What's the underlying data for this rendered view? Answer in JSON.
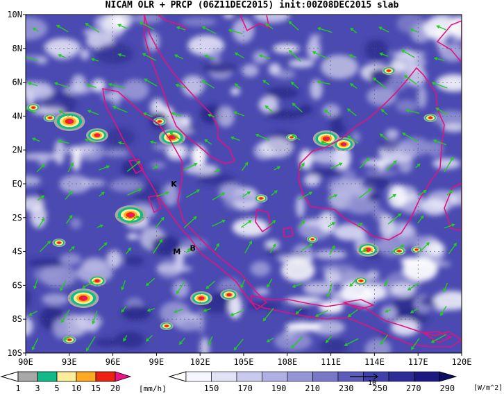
{
  "title": "NICAM OLR + PRCP (06Z11DEC2015) init:00Z08DEC2015 slab",
  "map": {
    "lat_labels": [
      "10N",
      "8N",
      "6N",
      "4N",
      "2N",
      "EQ",
      "2S",
      "4S",
      "6S",
      "8S",
      "10S"
    ],
    "lon_labels": [
      "90E",
      "93E",
      "96E",
      "99E",
      "102E",
      "105E",
      "108E",
      "111E",
      "114E",
      "117E",
      "120E"
    ],
    "place_markers": [
      {
        "label": "K",
        "lon": 100.2,
        "lat": 0.0
      },
      {
        "label": "M",
        "lon": 100.4,
        "lat": -4.0
      },
      {
        "label": "B",
        "lon": 101.5,
        "lat": -3.8
      }
    ],
    "colors": {
      "coastline": "#e0137f",
      "wind_vector": "#22cc22",
      "olr_low": "#ffffff",
      "olr_high": "#0d0d66"
    }
  },
  "legend_prcp": {
    "labels": [
      "1",
      "3",
      "5",
      "10",
      "15",
      "20"
    ],
    "unit": "[mm/h]",
    "colors": [
      "#a8a8a8",
      "#11bb88",
      "#ffee99",
      "#ffaa22",
      "#ee2211",
      "#ee1188"
    ]
  },
  "legend_olr": {
    "labels": [
      "150",
      "170",
      "190",
      "210",
      "230",
      "250",
      "270",
      "290"
    ],
    "unit": "[W/m^2]",
    "vector_ref": "10",
    "colors": [
      "#f6f6ff",
      "#e2e2f6",
      "#cacaee",
      "#b0b0e2",
      "#9494d6",
      "#7878c8",
      "#5c5cba",
      "#4040aa",
      "#2c2c96",
      "#1a1a80",
      "#0d0d66"
    ]
  }
}
